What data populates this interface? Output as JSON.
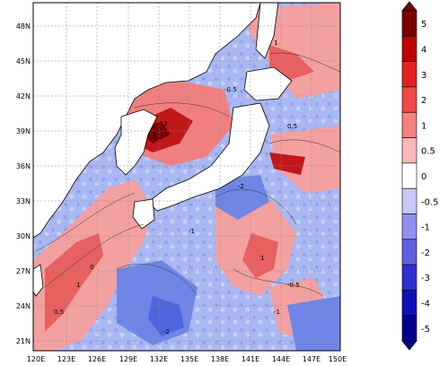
{
  "map": {
    "lon_ticks": [
      "120E",
      "123E",
      "126E",
      "129E",
      "132E",
      "135E",
      "138E",
      "141E",
      "144E",
      "147E",
      "150E"
    ],
    "lat_ticks": [
      "48N",
      "45N",
      "42N",
      "39N",
      "36N",
      "33N",
      "30N",
      "27N",
      "24N",
      "21N"
    ],
    "lon_range": [
      120,
      150
    ],
    "lat_range": [
      20,
      50
    ],
    "grid": "dotted",
    "coastlines": "black",
    "land_fill": "white",
    "contour_labels": [
      "1",
      "2",
      "3",
      "0.5",
      "-0.5",
      "-1",
      "-2",
      "0",
      "1",
      "-0.5",
      "-1",
      "-2",
      "0.5",
      "1"
    ]
  },
  "colorbar": {
    "orientation": "vertical",
    "labels": [
      "5",
      "4",
      "3",
      "2",
      "1",
      "0.5",
      "0",
      "-0.5",
      "-1",
      "-2",
      "-3",
      "-4",
      "-5"
    ],
    "colors": [
      "#7a0000",
      "#c00000",
      "#e62020",
      "#f04848",
      "#f58080",
      "#fab8b8",
      "#ffffff",
      "#c8c8f8",
      "#9090ee",
      "#6060e0",
      "#3030d0",
      "#1010b8",
      "#00008a"
    ],
    "extend": "both"
  }
}
